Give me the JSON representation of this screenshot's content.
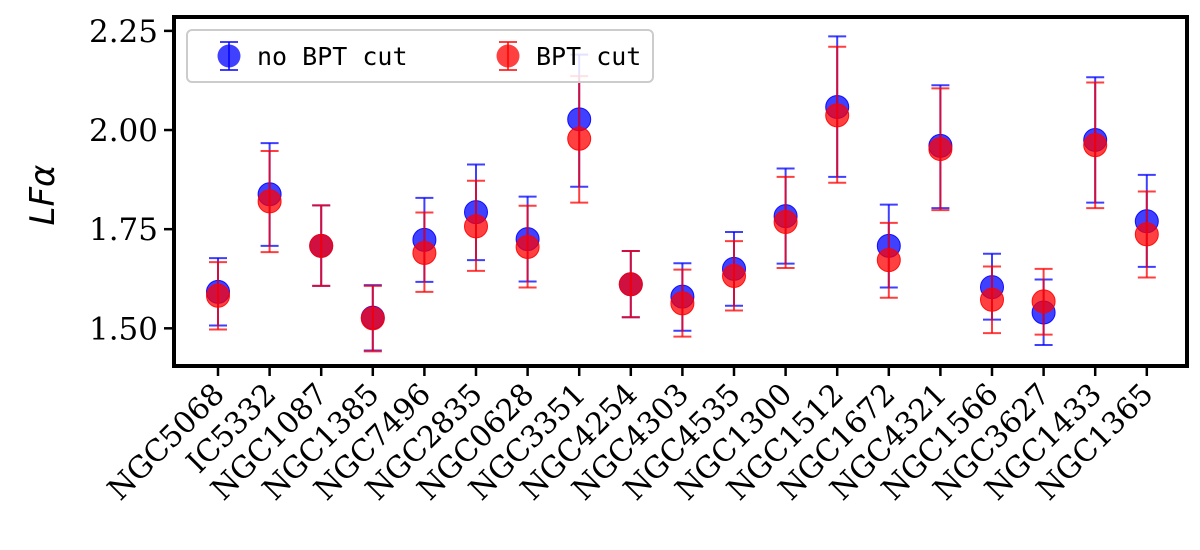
{
  "chart_data": {
    "type": "scatter",
    "ylabel": "LFα",
    "ylim": [
      1.405,
      2.285
    ],
    "yticks": [
      1.5,
      1.75,
      2.0,
      2.25
    ],
    "ytick_labels": [
      "1.50",
      "1.75",
      "2.00",
      "2.25"
    ],
    "legend_position": "top-left",
    "grid": false,
    "categories": [
      "NGC5068",
      "IC5332",
      "NGC1087",
      "NGC1385",
      "NGC7496",
      "NGC2835",
      "NGC0628",
      "NGC3351",
      "NGC4254",
      "NGC4303",
      "NGC4535",
      "NGC1300",
      "NGC1512",
      "NGC1672",
      "NGC4321",
      "NGC1566",
      "NGC3627",
      "NGC1433",
      "NGC1365"
    ],
    "series": [
      {
        "name": "no BPT cut",
        "color": "#0000ff",
        "values": [
          1.592,
          1.838,
          1.708,
          1.527,
          1.723,
          1.793,
          1.725,
          2.027,
          1.611,
          1.58,
          1.65,
          1.783,
          2.058,
          1.708,
          1.96,
          1.604,
          1.54,
          1.975,
          1.77
        ],
        "err_low": [
          1.507,
          1.708,
          1.607,
          1.444,
          1.617,
          1.672,
          1.618,
          1.857,
          1.528,
          1.494,
          1.557,
          1.663,
          1.882,
          1.603,
          1.803,
          1.522,
          1.458,
          1.817,
          1.655
        ],
        "err_high": [
          1.677,
          1.967,
          1.81,
          1.609,
          1.829,
          1.913,
          1.832,
          2.19,
          1.695,
          1.664,
          1.743,
          1.903,
          2.236,
          1.812,
          2.113,
          1.688,
          1.623,
          2.133,
          1.887
        ]
      },
      {
        "name": "BPT cut",
        "color": "#ff0000",
        "values": [
          1.582,
          1.82,
          1.708,
          1.525,
          1.69,
          1.757,
          1.705,
          1.978,
          1.611,
          1.563,
          1.632,
          1.768,
          2.037,
          1.672,
          1.952,
          1.572,
          1.568,
          1.962,
          1.737
        ],
        "err_low": [
          1.497,
          1.692,
          1.607,
          1.442,
          1.592,
          1.645,
          1.603,
          1.817,
          1.528,
          1.479,
          1.545,
          1.652,
          1.867,
          1.577,
          1.798,
          1.488,
          1.484,
          1.803,
          1.628
        ],
        "err_high": [
          1.667,
          1.947,
          1.81,
          1.607,
          1.792,
          1.872,
          1.809,
          2.136,
          1.695,
          1.648,
          1.72,
          1.882,
          2.21,
          1.766,
          2.105,
          1.656,
          1.65,
          2.12,
          1.845
        ]
      }
    ]
  }
}
